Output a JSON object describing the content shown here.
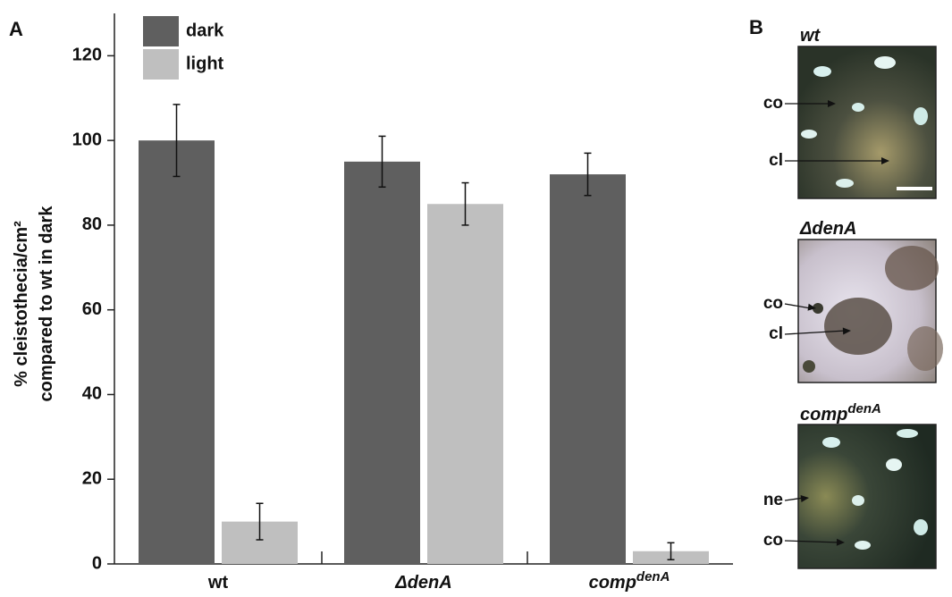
{
  "chart_data": {
    "type": "bar",
    "panel_label": "A",
    "y_label": [
      "% cleistothecia/cm²",
      "compared to wt in dark"
    ],
    "categories": [
      {
        "text": "wt"
      },
      {
        "text": "ΔdenA"
      },
      {
        "text": "comp",
        "sup": "denA"
      }
    ],
    "series": [
      {
        "name": "dark",
        "color": "#5f5f5f",
        "values": [
          100,
          95,
          92
        ],
        "errors": [
          8.5,
          6,
          5
        ]
      },
      {
        "name": "light",
        "color": "#bfbfbf",
        "values": [
          10,
          85,
          3
        ],
        "errors": [
          4.3,
          5,
          2
        ]
      }
    ],
    "ylim": [
      0,
      130
    ],
    "yticks": [
      0,
      20,
      40,
      60,
      80,
      100,
      120
    ]
  },
  "panel_b": {
    "label": "B",
    "images": [
      {
        "title": {
          "text": "wt"
        },
        "annotations": [
          "co",
          "cl"
        ]
      },
      {
        "title": {
          "text": "ΔdenA"
        },
        "annotations": [
          "co",
          "cl"
        ]
      },
      {
        "title": {
          "text": "comp",
          "sup": "denA"
        },
        "annotations": [
          "ne",
          "co"
        ]
      }
    ]
  }
}
